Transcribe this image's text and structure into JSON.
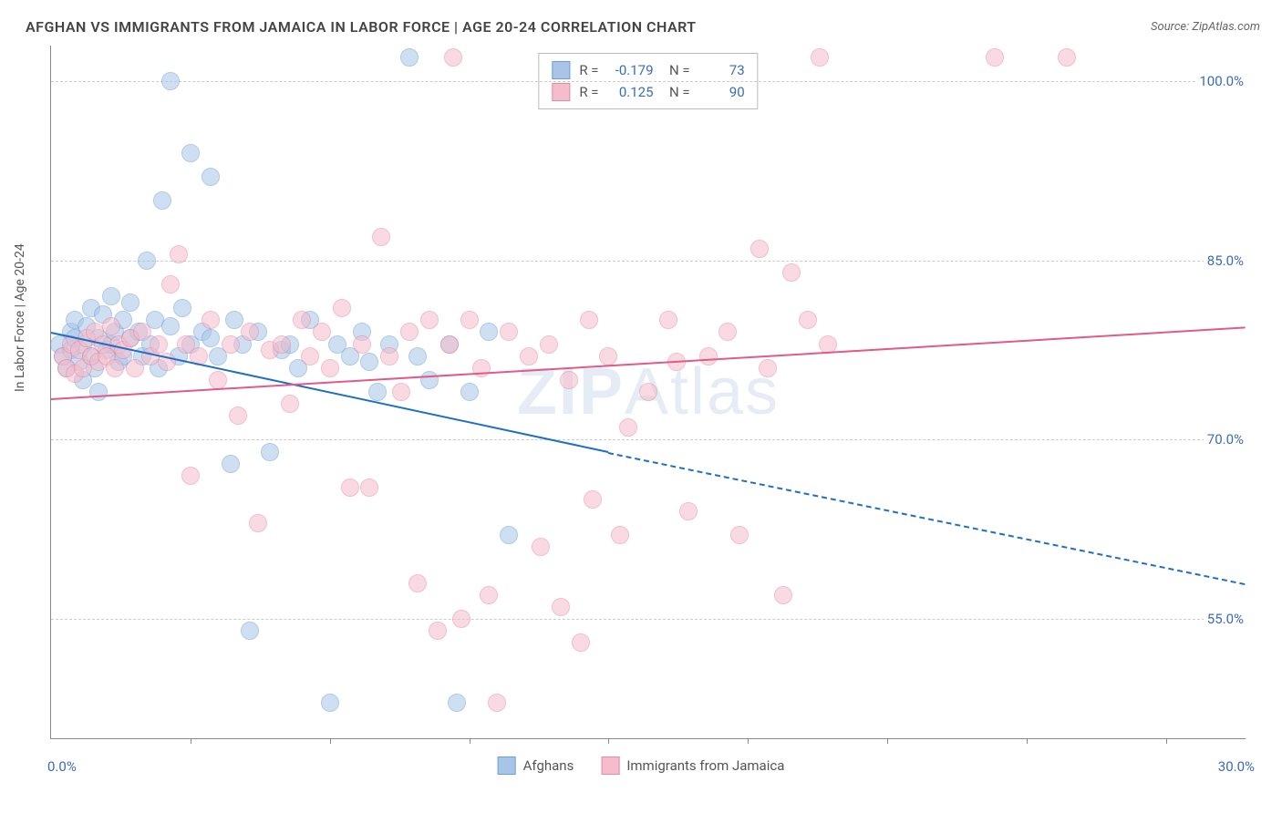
{
  "title": "AFGHAN VS IMMIGRANTS FROM JAMAICA IN LABOR FORCE | AGE 20-24 CORRELATION CHART",
  "source": "Source: ZipAtlas.com",
  "y_axis_title": "In Labor Force | Age 20-24",
  "watermark_1": "ZIP",
  "watermark_2": "Atlas",
  "chart": {
    "type": "scatter",
    "xlim": [
      0,
      30
    ],
    "ylim": [
      45,
      103
    ],
    "x_ticks": [
      3.5,
      7,
      10.5,
      14,
      17.5,
      21,
      24.5,
      28
    ],
    "x_label_min": "0.0%",
    "x_label_max": "30.0%",
    "y_gridlines": [
      55,
      70,
      85,
      100
    ],
    "y_labels": [
      "55.0%",
      "70.0%",
      "85.0%",
      "100.0%"
    ],
    "background_color": "#ffffff",
    "grid_color": "#cccccc",
    "axis_color": "#888888",
    "label_color": "#3b6db5",
    "series": [
      {
        "name": "Afghans",
        "fill": "#a8c5e8",
        "stroke": "#6ea0d8",
        "line_color": "#1f6fc7",
        "r_value": "-0.179",
        "n_value": "73",
        "regression": {
          "x1": 0,
          "y1": 79,
          "x2": 14,
          "y2": 69,
          "solid_until_x": 14,
          "dash_to_x": 30,
          "dash_to_y": 58
        },
        "points": [
          [
            0.2,
            78
          ],
          [
            0.3,
            77
          ],
          [
            0.4,
            76
          ],
          [
            0.5,
            79
          ],
          [
            0.5,
            77.5
          ],
          [
            0.6,
            80
          ],
          [
            0.6,
            78.5
          ],
          [
            0.7,
            76.5
          ],
          [
            0.8,
            75
          ],
          [
            0.8,
            78
          ],
          [
            0.9,
            79.5
          ],
          [
            1.0,
            77
          ],
          [
            1.0,
            81
          ],
          [
            1.1,
            76
          ],
          [
            1.2,
            78.5
          ],
          [
            1.2,
            74
          ],
          [
            1.3,
            80.5
          ],
          [
            1.4,
            77.5
          ],
          [
            1.5,
            82
          ],
          [
            1.5,
            78
          ],
          [
            1.6,
            79
          ],
          [
            1.7,
            76.5
          ],
          [
            1.8,
            80
          ],
          [
            1.8,
            77
          ],
          [
            2.0,
            78.5
          ],
          [
            2.0,
            81.5
          ],
          [
            2.2,
            79
          ],
          [
            2.3,
            77
          ],
          [
            2.4,
            85
          ],
          [
            2.5,
            78
          ],
          [
            2.6,
            80
          ],
          [
            2.7,
            76
          ],
          [
            2.8,
            90
          ],
          [
            3.0,
            79.5
          ],
          [
            3.0,
            100
          ],
          [
            3.2,
            77
          ],
          [
            3.3,
            81
          ],
          [
            3.5,
            78
          ],
          [
            3.5,
            94
          ],
          [
            3.8,
            79
          ],
          [
            4.0,
            78.5
          ],
          [
            4.0,
            92
          ],
          [
            4.2,
            77
          ],
          [
            4.5,
            68
          ],
          [
            4.6,
            80
          ],
          [
            4.8,
            78
          ],
          [
            5.0,
            54
          ],
          [
            5.2,
            79
          ],
          [
            5.5,
            69
          ],
          [
            5.8,
            77.5
          ],
          [
            6.0,
            78
          ],
          [
            6.2,
            76
          ],
          [
            6.5,
            80
          ],
          [
            7.0,
            48
          ],
          [
            7.2,
            78
          ],
          [
            7.5,
            77
          ],
          [
            7.8,
            79
          ],
          [
            8.0,
            76.5
          ],
          [
            8.2,
            74
          ],
          [
            8.5,
            78
          ],
          [
            9.0,
            102
          ],
          [
            9.2,
            77
          ],
          [
            9.5,
            75
          ],
          [
            10.0,
            78
          ],
          [
            10.2,
            48
          ],
          [
            10.5,
            74
          ],
          [
            11.0,
            79
          ],
          [
            11.5,
            62
          ]
        ]
      },
      {
        "name": "Immigrants from Jamaica",
        "fill": "#f5bccb",
        "stroke": "#e88aa5",
        "line_color": "#e05a8a",
        "r_value": "0.125",
        "n_value": "90",
        "regression": {
          "x1": 0,
          "y1": 73.5,
          "x2": 30,
          "y2": 79.5,
          "solid_until_x": 30
        },
        "points": [
          [
            0.3,
            77
          ],
          [
            0.4,
            76
          ],
          [
            0.5,
            78
          ],
          [
            0.6,
            75.5
          ],
          [
            0.7,
            77.5
          ],
          [
            0.8,
            76
          ],
          [
            0.9,
            78.5
          ],
          [
            1.0,
            77
          ],
          [
            1.1,
            79
          ],
          [
            1.2,
            76.5
          ],
          [
            1.3,
            78
          ],
          [
            1.4,
            77
          ],
          [
            1.5,
            79.5
          ],
          [
            1.6,
            76
          ],
          [
            1.7,
            78
          ],
          [
            1.8,
            77.5
          ],
          [
            2.0,
            78.5
          ],
          [
            2.1,
            76
          ],
          [
            2.3,
            79
          ],
          [
            2.5,
            77
          ],
          [
            2.7,
            78
          ],
          [
            2.9,
            76.5
          ],
          [
            3.0,
            83
          ],
          [
            3.2,
            85.5
          ],
          [
            3.4,
            78
          ],
          [
            3.5,
            67
          ],
          [
            3.7,
            77
          ],
          [
            4.0,
            80
          ],
          [
            4.2,
            75
          ],
          [
            4.5,
            78
          ],
          [
            4.7,
            72
          ],
          [
            5.0,
            79
          ],
          [
            5.2,
            63
          ],
          [
            5.5,
            77.5
          ],
          [
            5.8,
            78
          ],
          [
            6.0,
            73
          ],
          [
            6.3,
            80
          ],
          [
            6.5,
            77
          ],
          [
            6.8,
            79
          ],
          [
            7.0,
            76
          ],
          [
            7.3,
            81
          ],
          [
            7.5,
            66
          ],
          [
            7.8,
            78
          ],
          [
            8.0,
            66
          ],
          [
            8.3,
            87
          ],
          [
            8.5,
            77
          ],
          [
            8.8,
            74
          ],
          [
            9.0,
            79
          ],
          [
            9.2,
            58
          ],
          [
            9.5,
            80
          ],
          [
            9.7,
            54
          ],
          [
            10.0,
            78
          ],
          [
            10.1,
            102
          ],
          [
            10.3,
            55
          ],
          [
            10.5,
            80
          ],
          [
            10.8,
            76
          ],
          [
            11.0,
            57
          ],
          [
            11.2,
            48
          ],
          [
            11.5,
            79
          ],
          [
            12.0,
            77
          ],
          [
            12.3,
            61
          ],
          [
            12.5,
            78
          ],
          [
            12.8,
            56
          ],
          [
            13.0,
            75
          ],
          [
            13.3,
            53
          ],
          [
            13.5,
            80
          ],
          [
            13.6,
            65
          ],
          [
            14.0,
            77
          ],
          [
            14.3,
            62
          ],
          [
            14.5,
            71
          ],
          [
            15.0,
            74
          ],
          [
            15.5,
            80
          ],
          [
            15.7,
            76.5
          ],
          [
            16.0,
            64
          ],
          [
            16.5,
            77
          ],
          [
            17.0,
            79
          ],
          [
            17.3,
            62
          ],
          [
            17.8,
            86
          ],
          [
            18.0,
            76
          ],
          [
            18.4,
            57
          ],
          [
            18.6,
            84
          ],
          [
            19.0,
            80
          ],
          [
            19.3,
            102
          ],
          [
            19.5,
            78
          ],
          [
            23.7,
            102
          ],
          [
            25.5,
            102
          ]
        ]
      }
    ]
  },
  "legend_bottom": [
    {
      "label": "Afghans",
      "fill": "#a8c5e8",
      "stroke": "#6ea0d8"
    },
    {
      "label": "Immigrants from Jamaica",
      "fill": "#f5bccb",
      "stroke": "#e88aa5"
    }
  ]
}
